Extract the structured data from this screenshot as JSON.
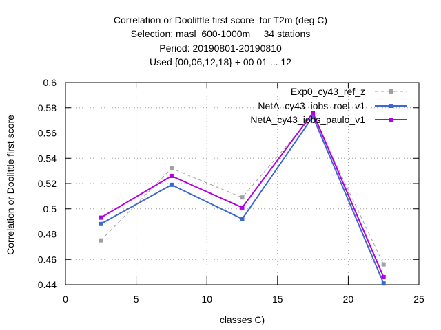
{
  "chart_data": {
    "type": "line",
    "title_lines": [
      "Correlation or Doolittle first score  for T2m (deg C)",
      "Selection: masl_600-1000m     34 stations",
      "Period: 20190801-20190810",
      "Used {00,06,12,18} + 00 01 ... 12"
    ],
    "xlabel": "classes C)",
    "ylabel": "Correlation or Doolittle first score",
    "xlim": [
      0,
      25
    ],
    "ylim": [
      0.44,
      0.6
    ],
    "x_ticks": [
      "0",
      "5",
      "10",
      "15",
      "20",
      "25"
    ],
    "y_ticks": [
      "0.44",
      "0.46",
      "0.48",
      "0.5",
      "0.52",
      "0.54",
      "0.56",
      "0.58",
      "0.6"
    ],
    "grid": true,
    "legend_position": "top-right",
    "x": [
      2.5,
      7.5,
      12.5,
      17.5,
      22.5
    ],
    "series": [
      {
        "name": "Exp0_cy43_ref_z",
        "values": [
          0.475,
          0.532,
          0.509,
          0.574,
          0.456
        ],
        "color": "#a0a0a0",
        "dash": true
      },
      {
        "name": "NetA_cy43_iobs_roel_v1",
        "values": [
          0.488,
          0.519,
          0.492,
          0.573,
          0.441
        ],
        "color": "#3c68d2",
        "dash": false
      },
      {
        "name": "NetA_cy43_iobs_paulo_v1",
        "values": [
          0.493,
          0.526,
          0.501,
          0.576,
          0.446
        ],
        "color": "#b400e0",
        "dash": false
      }
    ]
  }
}
